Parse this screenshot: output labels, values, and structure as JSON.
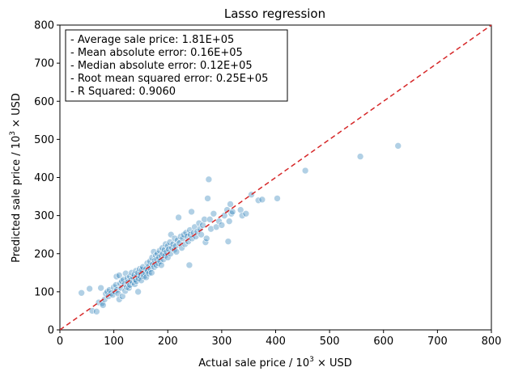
{
  "chart_data": {
    "type": "scatter",
    "title": "Lasso regression",
    "xlabel": {
      "prefix": "Actual sale price / 10",
      "sup": "3",
      "suffix": " × USD"
    },
    "ylabel": {
      "prefix": "Predicted sale price / 10",
      "sup": "3",
      "suffix": " × USD"
    },
    "xlim": [
      0,
      800
    ],
    "ylim": [
      0,
      800
    ],
    "xticks": [
      0,
      100,
      200,
      300,
      400,
      500,
      600,
      700,
      800
    ],
    "yticks": [
      0,
      100,
      200,
      300,
      400,
      500,
      600,
      700,
      800
    ],
    "grid": false,
    "point_color": "#1f77b4",
    "reference_line": {
      "x": [
        0,
        800
      ],
      "y": [
        0,
        800
      ],
      "style": "dashed",
      "color": "#d62728"
    },
    "annotation_lines": [
      "- Average sale price: 1.81E+05",
      "- Mean absolute error: 0.16E+05",
      "- Median absolute error: 0.12E+05",
      "- Root mean squared error: 0.25E+05",
      "- R Squared: 0.9060"
    ],
    "points": [
      [
        40,
        97
      ],
      [
        55,
        108
      ],
      [
        60,
        50
      ],
      [
        68,
        48
      ],
      [
        72,
        72
      ],
      [
        76,
        110
      ],
      [
        78,
        70
      ],
      [
        80,
        65
      ],
      [
        83,
        80
      ],
      [
        85,
        95
      ],
      [
        88,
        100
      ],
      [
        90,
        88
      ],
      [
        92,
        105
      ],
      [
        95,
        96
      ],
      [
        98,
        92
      ],
      [
        100,
        112
      ],
      [
        102,
        100
      ],
      [
        104,
        118
      ],
      [
        105,
        140
      ],
      [
        106,
        105
      ],
      [
        108,
        95
      ],
      [
        110,
        143
      ],
      [
        110,
        80
      ],
      [
        112,
        122
      ],
      [
        114,
        110
      ],
      [
        115,
        128
      ],
      [
        116,
        88
      ],
      [
        118,
        132
      ],
      [
        120,
        120
      ],
      [
        121,
        102
      ],
      [
        122,
        148
      ],
      [
        124,
        112
      ],
      [
        125,
        135
      ],
      [
        126,
        125
      ],
      [
        128,
        110
      ],
      [
        130,
        140
      ],
      [
        130,
        118
      ],
      [
        132,
        130
      ],
      [
        133,
        150
      ],
      [
        135,
        125
      ],
      [
        136,
        138
      ],
      [
        138,
        145
      ],
      [
        139,
        120
      ],
      [
        140,
        132
      ],
      [
        141,
        155
      ],
      [
        142,
        128
      ],
      [
        143,
        142
      ],
      [
        145,
        100
      ],
      [
        145,
        150
      ],
      [
        146,
        135
      ],
      [
        148,
        160
      ],
      [
        149,
        140
      ],
      [
        150,
        148
      ],
      [
        151,
        130
      ],
      [
        152,
        158
      ],
      [
        154,
        165
      ],
      [
        155,
        145
      ],
      [
        156,
        140
      ],
      [
        158,
        150
      ],
      [
        160,
        160
      ],
      [
        160,
        138
      ],
      [
        162,
        175
      ],
      [
        163,
        155
      ],
      [
        165,
        168
      ],
      [
        165,
        148
      ],
      [
        167,
        180
      ],
      [
        168,
        160
      ],
      [
        170,
        150
      ],
      [
        171,
        190
      ],
      [
        172,
        172
      ],
      [
        174,
        205
      ],
      [
        175,
        165
      ],
      [
        176,
        182
      ],
      [
        178,
        195
      ],
      [
        179,
        170
      ],
      [
        180,
        185
      ],
      [
        181,
        200
      ],
      [
        182,
        175
      ],
      [
        184,
        190
      ],
      [
        185,
        208
      ],
      [
        186,
        180
      ],
      [
        188,
        195
      ],
      [
        188,
        170
      ],
      [
        190,
        215
      ],
      [
        191,
        200
      ],
      [
        192,
        185
      ],
      [
        194,
        210
      ],
      [
        195,
        195
      ],
      [
        196,
        225
      ],
      [
        198,
        205
      ],
      [
        200,
        220
      ],
      [
        200,
        190
      ],
      [
        202,
        212
      ],
      [
        204,
        230
      ],
      [
        205,
        200
      ],
      [
        206,
        250
      ],
      [
        208,
        215
      ],
      [
        210,
        225
      ],
      [
        212,
        210
      ],
      [
        213,
        240
      ],
      [
        215,
        220
      ],
      [
        216,
        205
      ],
      [
        218,
        235
      ],
      [
        220,
        295
      ],
      [
        222,
        228
      ],
      [
        224,
        245
      ],
      [
        226,
        215
      ],
      [
        228,
        240
      ],
      [
        230,
        250
      ],
      [
        232,
        225
      ],
      [
        234,
        255
      ],
      [
        236,
        245
      ],
      [
        238,
        232
      ],
      [
        240,
        170
      ],
      [
        241,
        262
      ],
      [
        242,
        250
      ],
      [
        244,
        310
      ],
      [
        245,
        240
      ],
      [
        248,
        255
      ],
      [
        250,
        270
      ],
      [
        252,
        245
      ],
      [
        255,
        258
      ],
      [
        258,
        280
      ],
      [
        260,
        265
      ],
      [
        262,
        250
      ],
      [
        265,
        275
      ],
      [
        268,
        290
      ],
      [
        270,
        230
      ],
      [
        272,
        240
      ],
      [
        274,
        345
      ],
      [
        276,
        395
      ],
      [
        278,
        290
      ],
      [
        280,
        265
      ],
      [
        285,
        305
      ],
      [
        290,
        270
      ],
      [
        295,
        285
      ],
      [
        300,
        275
      ],
      [
        305,
        300
      ],
      [
        310,
        315
      ],
      [
        312,
        232
      ],
      [
        314,
        285
      ],
      [
        316,
        330
      ],
      [
        318,
        305
      ],
      [
        320,
        310
      ],
      [
        335,
        315
      ],
      [
        338,
        300
      ],
      [
        345,
        305
      ],
      [
        355,
        355
      ],
      [
        368,
        340
      ],
      [
        375,
        342
      ],
      [
        403,
        345
      ],
      [
        455,
        418
      ],
      [
        557,
        455
      ],
      [
        627,
        483
      ]
    ]
  }
}
